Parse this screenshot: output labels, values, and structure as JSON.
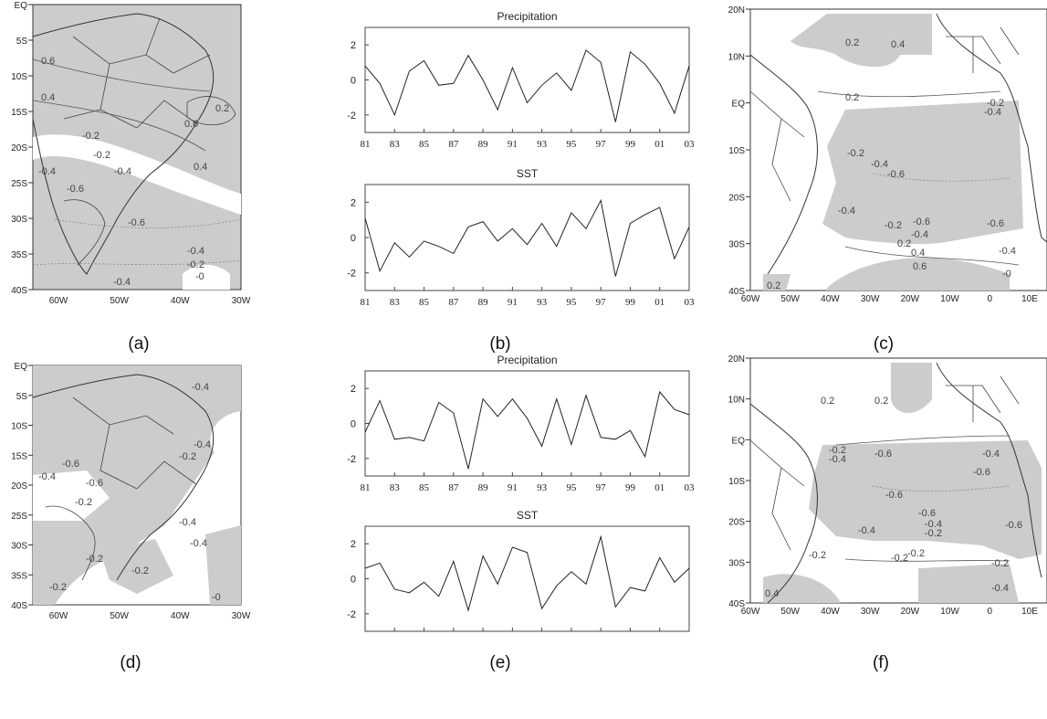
{
  "captions": [
    "(a)",
    "(b)",
    "(c)",
    "(d)",
    "(e)",
    "(f)"
  ],
  "map_sa": {
    "lat_ticks": [
      "EQ",
      "5S",
      "10S",
      "15S",
      "20S",
      "25S",
      "30S",
      "35S",
      "40S"
    ],
    "lon_ticks": [
      "60W",
      "50W",
      "40W",
      "30W"
    ]
  },
  "map_atl": {
    "lat_ticks": [
      "20N",
      "10N",
      "EQ",
      "10S",
      "20S",
      "30S",
      "40S"
    ],
    "lon_ticks": [
      "60W",
      "50W",
      "40W",
      "30W",
      "20W",
      "10W",
      "0",
      "10E"
    ]
  },
  "contour_labels": {
    "a": [
      "0.6",
      "0.4",
      "0.6",
      "0.2",
      "-0.2",
      "-0.2",
      "-0.4",
      "-0.4",
      "0.4",
      "-0.6",
      "-0.6",
      "-0.4",
      "-0.2",
      "-0.4",
      "-0"
    ],
    "c": [
      "0.2",
      "0.4",
      "0.2",
      "-0.2",
      "-0.4",
      "-0.2",
      "-0.4",
      "-0.6",
      "-0.4",
      "-0.2",
      "-0.6",
      "-0.4",
      "-0.6",
      "0.2",
      "0.4",
      "0.6",
      "-0.4",
      "-0",
      "0.2"
    ],
    "d": [
      "-0.4",
      "-0.6",
      "-0.4",
      "-0.4",
      "-0.2",
      "-0.6",
      "-0.2",
      "-0.4",
      "-0.4",
      "-0.2",
      "-0.2",
      "-0.2",
      "-0"
    ],
    "f": [
      "0.2",
      "0.2",
      "-0.2",
      "-0.4",
      "-0.6",
      "-0.4",
      "-0.6",
      "-0.6",
      "-0.6",
      "-0.4",
      "-0.2",
      "-0.4",
      "-0.6",
      "-0.2",
      "-0.2",
      "-0.2",
      "-0.2",
      "0.4",
      "-0.4"
    ]
  },
  "chart_data": [
    {
      "type": "line",
      "panel": "b",
      "title": "Precipitation",
      "x_tick_labels": [
        "81",
        "83",
        "85",
        "87",
        "89",
        "91",
        "93",
        "95",
        "97",
        "99",
        "01",
        "03"
      ],
      "y_ticks": [
        -2,
        0,
        2
      ],
      "ylim": [
        -3,
        3
      ],
      "x": [
        1981,
        1982,
        1983,
        1984,
        1985,
        1986,
        1987,
        1988,
        1989,
        1990,
        1991,
        1992,
        1993,
        1994,
        1995,
        1996,
        1997,
        1998,
        1999,
        2000,
        2001,
        2002,
        2003
      ],
      "values": [
        0.8,
        -0.2,
        -2.0,
        0.5,
        1.1,
        -0.3,
        -0.2,
        1.4,
        0.0,
        -1.7,
        0.7,
        -1.3,
        -0.3,
        0.4,
        -0.6,
        1.7,
        1.0,
        -2.4,
        1.6,
        0.9,
        -0.2,
        -1.9,
        0.8
      ]
    },
    {
      "type": "line",
      "panel": "b",
      "title": "SST",
      "x_tick_labels": [
        "81",
        "83",
        "85",
        "87",
        "89",
        "91",
        "93",
        "95",
        "97",
        "99",
        "01",
        "03"
      ],
      "y_ticks": [
        -2,
        0,
        2
      ],
      "ylim": [
        -3,
        3
      ],
      "x": [
        1981,
        1982,
        1983,
        1984,
        1985,
        1986,
        1987,
        1988,
        1989,
        1990,
        1991,
        1992,
        1993,
        1994,
        1995,
        1996,
        1997,
        1998,
        1999,
        2000,
        2001,
        2002,
        2003
      ],
      "values": [
        1.1,
        -1.9,
        -0.3,
        -1.1,
        -0.2,
        -0.5,
        -0.9,
        0.6,
        0.9,
        -0.2,
        0.5,
        -0.4,
        0.8,
        -0.5,
        1.4,
        0.5,
        2.1,
        -2.2,
        0.8,
        1.3,
        1.7,
        -1.2,
        0.6
      ]
    },
    {
      "type": "line",
      "panel": "e",
      "title": "Precipitation",
      "x_tick_labels": [
        "81",
        "83",
        "85",
        "87",
        "89",
        "91",
        "93",
        "95",
        "97",
        "99",
        "01",
        "03"
      ],
      "y_ticks": [
        -2,
        0,
        2
      ],
      "ylim": [
        -3,
        3
      ],
      "x": [
        1981,
        1982,
        1983,
        1984,
        1985,
        1986,
        1987,
        1988,
        1989,
        1990,
        1991,
        1992,
        1993,
        1994,
        1995,
        1996,
        1997,
        1998,
        1999,
        2000,
        2001,
        2002,
        2003
      ],
      "values": [
        -0.5,
        1.3,
        -0.9,
        -0.8,
        -1.0,
        1.2,
        0.6,
        -2.6,
        1.4,
        0.4,
        1.4,
        0.3,
        -1.3,
        1.4,
        -1.2,
        1.6,
        -0.8,
        -0.9,
        -0.4,
        -1.9,
        1.8,
        0.8,
        0.5
      ]
    },
    {
      "type": "line",
      "panel": "e",
      "title": "SST",
      "x_tick_labels": [
        "81",
        "83",
        "85",
        "87",
        "89",
        "91",
        "93",
        "95",
        "97",
        "99",
        "01",
        "03"
      ],
      "y_ticks": [
        -2,
        0,
        2
      ],
      "ylim": [
        -3,
        3
      ],
      "x": [
        1981,
        1982,
        1983,
        1984,
        1985,
        1986,
        1987,
        1988,
        1989,
        1990,
        1991,
        1992,
        1993,
        1994,
        1995,
        1996,
        1997,
        1998,
        1999,
        2000,
        2001,
        2002,
        2003
      ],
      "values": [
        0.6,
        0.9,
        -0.6,
        -0.8,
        -0.2,
        -1.0,
        1.0,
        -1.8,
        1.3,
        -0.3,
        1.8,
        1.5,
        -1.7,
        -0.4,
        0.4,
        -0.3,
        2.4,
        -1.6,
        -0.5,
        -0.7,
        1.2,
        -0.2,
        0.6
      ]
    }
  ]
}
